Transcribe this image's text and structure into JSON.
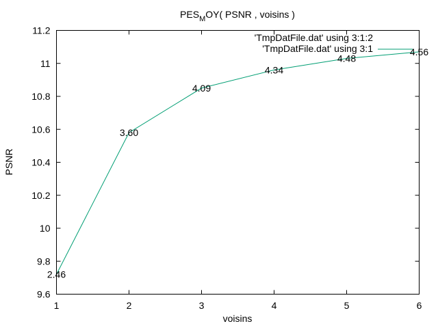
{
  "chart_data": {
    "type": "line",
    "title": {
      "main": "PES",
      "subscript": "M",
      "rest": "OY( PSNR , voisins )"
    },
    "xlabel": "voisins",
    "ylabel": "PSNR",
    "xlim": [
      1,
      6
    ],
    "ylim": [
      9.6,
      11.2
    ],
    "xticks": [
      "1",
      "2",
      "3",
      "4",
      "5",
      "6"
    ],
    "xtick_values": [
      1,
      2,
      3,
      4,
      5,
      6
    ],
    "yticks": [
      "9.6",
      "9.8",
      "10",
      "10.2",
      "10.4",
      "10.6",
      "10.8",
      "11",
      "11.2"
    ],
    "ytick_values": [
      9.6,
      9.8,
      10.0,
      10.2,
      10.4,
      10.6,
      10.8,
      11.0,
      11.2
    ],
    "grid": false,
    "legend_position": "top-right",
    "series": [
      {
        "name": "'TmpDatFile.dat' using 3:1:2",
        "style": "labels",
        "x": [
          1,
          2,
          3,
          4,
          5,
          6
        ],
        "y": [
          9.72,
          10.58,
          10.85,
          10.96,
          11.03,
          11.07
        ],
        "labels": [
          "2.46",
          "3.60",
          "4.09",
          "4.34",
          "4.48",
          "4.56"
        ]
      },
      {
        "name": "'TmpDatFile.dat' using 3:1",
        "style": "line",
        "color": "#009e73",
        "x": [
          1,
          2,
          3,
          4,
          5,
          6
        ],
        "y": [
          9.72,
          10.58,
          10.85,
          10.96,
          11.03,
          11.07
        ]
      }
    ]
  }
}
